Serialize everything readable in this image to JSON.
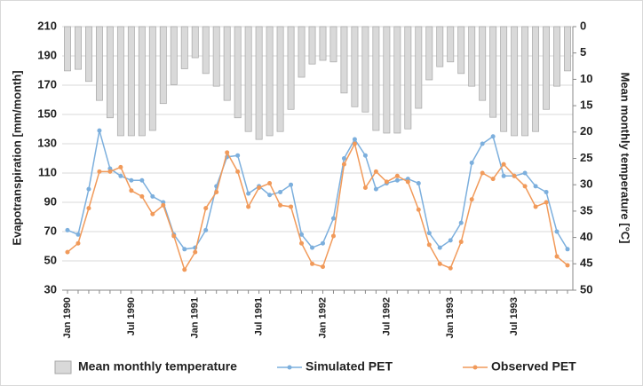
{
  "chart_data": {
    "type": "bar-line",
    "categories": [
      "Jan 1990",
      null,
      null,
      null,
      null,
      null,
      "Jul 1990",
      null,
      null,
      null,
      null,
      null,
      "Jan 1991",
      null,
      null,
      null,
      null,
      null,
      "Jul 1991",
      null,
      null,
      null,
      null,
      null,
      "Jan 1992",
      null,
      null,
      null,
      null,
      null,
      "Jul 1992",
      null,
      null,
      null,
      null,
      null,
      "Jan 1993",
      null,
      null,
      null,
      null,
      null,
      "Jul 1993",
      null,
      null,
      null,
      null,
      null
    ],
    "ylabel": "Evapotranspiration [mm/month]",
    "y2label": "Mean monthly temperature [°C]",
    "ylim": [
      30,
      210
    ],
    "yticks": [
      30,
      50,
      70,
      90,
      110,
      130,
      150,
      170,
      190,
      210
    ],
    "y2lim": [
      0,
      50
    ],
    "y2ticks": [
      0,
      5,
      10,
      15,
      20,
      25,
      30,
      35,
      40,
      45,
      50
    ],
    "y2_inverted": true,
    "grid": true,
    "legend": "bottom",
    "series": [
      {
        "name": "Mean monthly temperature",
        "type": "bar",
        "axis": "y2",
        "color": "#d9d9d9",
        "values": [
          8.4,
          8.1,
          10.4,
          14,
          17.3,
          20.7,
          20.7,
          20.7,
          19.7,
          14.6,
          11,
          8,
          5.9,
          8.9,
          11.3,
          14,
          17.3,
          19.9,
          21.4,
          20.7,
          19.9,
          15.7,
          9.6,
          7.1,
          6.4,
          6.7,
          12.6,
          15.2,
          16.2,
          19.7,
          20.2,
          20.2,
          19.4,
          15.5,
          10.1,
          7.6,
          6.7,
          8.9,
          11.3,
          14,
          17.2,
          19.9,
          20.7,
          20.7,
          19.9,
          15.7,
          11.3,
          8.4
        ]
      },
      {
        "name": "Simulated PET",
        "type": "line",
        "color": "#7cafdd",
        "values": [
          71,
          68,
          99,
          139,
          113,
          108,
          105,
          105,
          94,
          90,
          68,
          58,
          59,
          71,
          101,
          121,
          122,
          96,
          101,
          95,
          97,
          102,
          68,
          59,
          62,
          79,
          120,
          133,
          122,
          99,
          103,
          105,
          106,
          103,
          69,
          59,
          64,
          76,
          117,
          130,
          135,
          108,
          108,
          110,
          101,
          97,
          70,
          58
        ]
      },
      {
        "name": "Observed PET",
        "type": "line",
        "color": "#f19a5a",
        "values": [
          56,
          62,
          86,
          111,
          111,
          114,
          98,
          94,
          82,
          88,
          67,
          44,
          56,
          86,
          97,
          124,
          111,
          87,
          100,
          103,
          88,
          87,
          62,
          48,
          46,
          67,
          116,
          130,
          100,
          111,
          104,
          108,
          104,
          85,
          61,
          48,
          45,
          63,
          92,
          110,
          106,
          116,
          108,
          101,
          87,
          90,
          53,
          47
        ]
      }
    ]
  }
}
